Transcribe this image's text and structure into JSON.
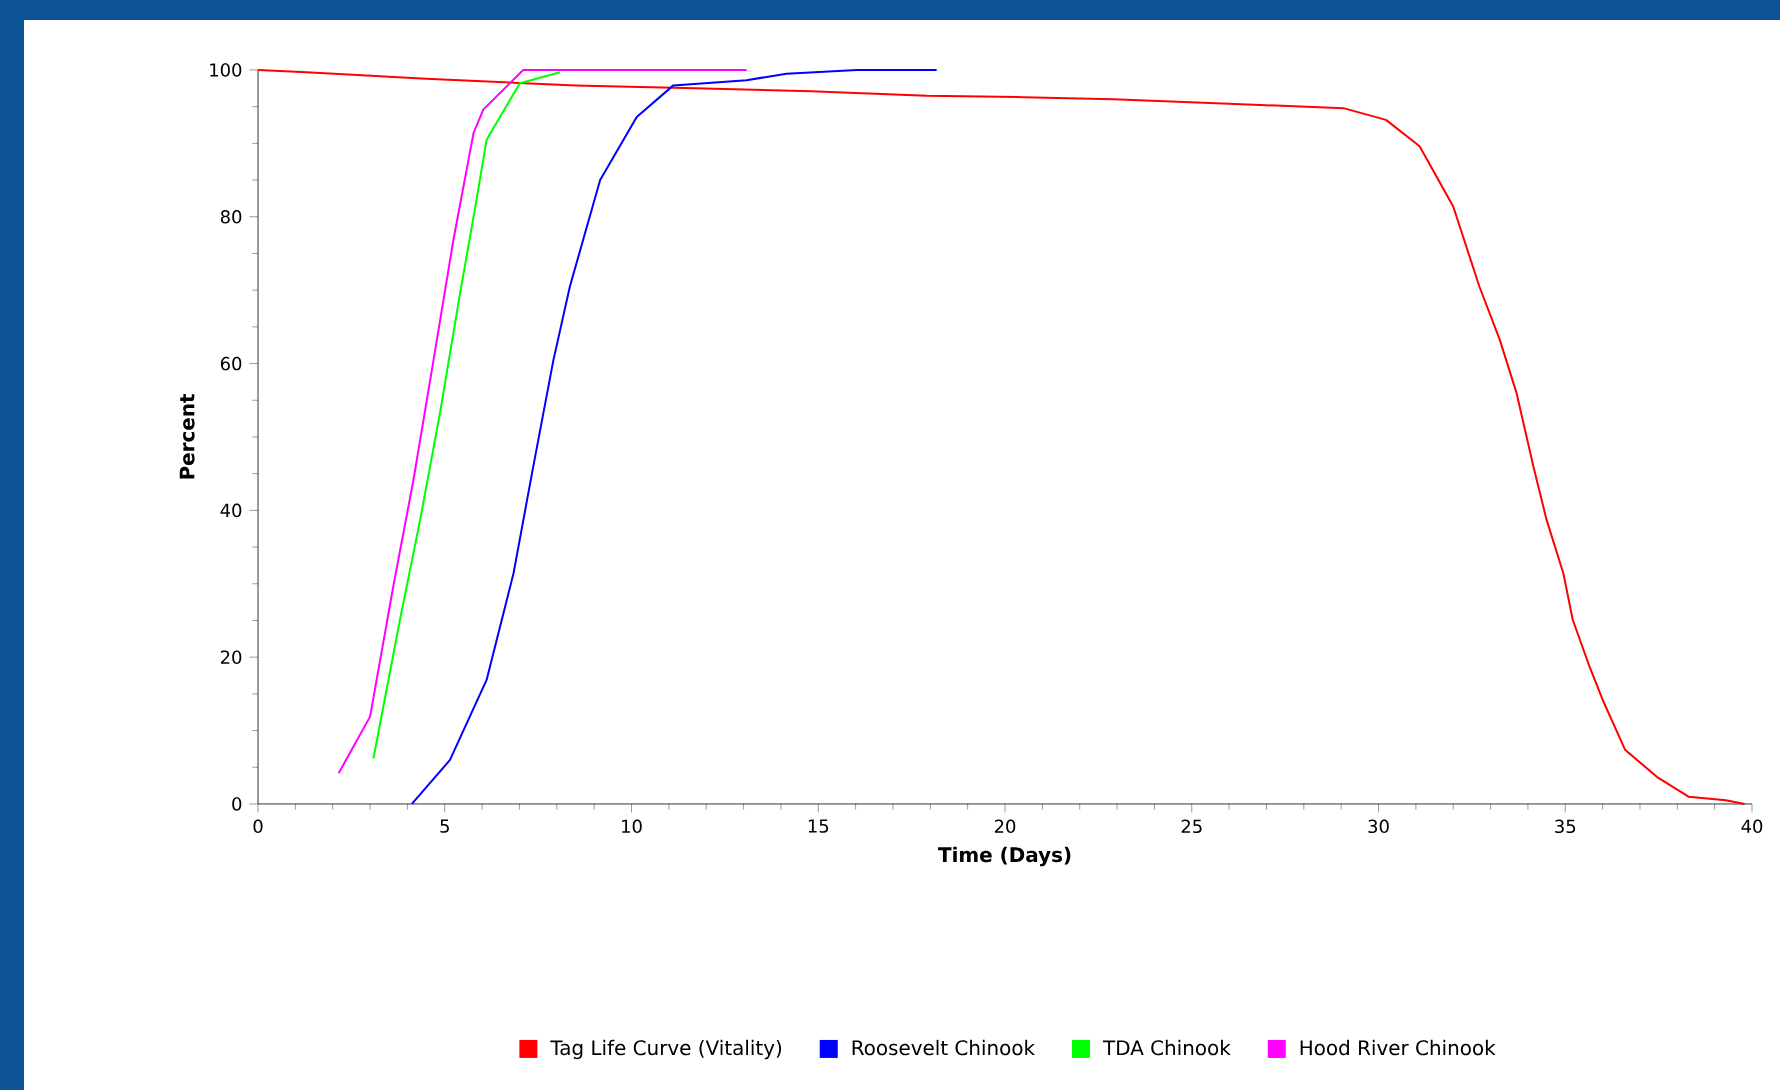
{
  "chart_data": {
    "type": "line",
    "xlabel": "Time (Days)",
    "ylabel": "Percent",
    "xlim": [
      0,
      40
    ],
    "xticks": [
      0,
      5,
      10,
      15,
      20,
      25,
      30,
      35,
      40
    ],
    "ylim": [
      0,
      100
    ],
    "yticks": [
      0,
      20,
      40,
      60,
      80,
      100
    ],
    "grid": false,
    "legend": "bottom",
    "marker": "none",
    "line_style": "solid",
    "series": [
      {
        "name": "Tag Life Curve (Vitality)",
        "color": "#ff0000",
        "x": [
          0,
          1.3,
          4.5,
          8.5,
          11.7,
          14.8,
          17.9,
          20.5,
          22.9,
          26.0,
          29.06,
          30.2,
          31.1,
          32.0,
          32.7,
          33.25,
          33.7,
          34.15,
          34.5,
          34.95,
          35.2,
          35.65,
          36.0,
          36.6,
          37.45,
          38.3,
          39.3,
          39.8
        ],
        "values": [
          100,
          99.7,
          98.8,
          97.9,
          97.5,
          97.1,
          96.5,
          96.3,
          96.0,
          95.4,
          94.8,
          93.2,
          89.6,
          81.4,
          70.5,
          63.2,
          55.9,
          45.9,
          38.7,
          31.4,
          25.1,
          18.7,
          14.2,
          7.4,
          3.7,
          1.0,
          0.5,
          0
        ]
      },
      {
        "name": "Roosevelt Chinook",
        "color": "#0000ff",
        "x": [
          4.12,
          5.14,
          6.12,
          6.84,
          7.37,
          7.91,
          8.35,
          9.16,
          10.14,
          11.12,
          13.08,
          14.15,
          16.03,
          18.17
        ],
        "values": [
          0,
          6.0,
          16.9,
          31.4,
          46.0,
          60.5,
          70.5,
          85.0,
          93.6,
          97.9,
          98.6,
          99.5,
          100,
          100
        ]
      },
      {
        "name": "TDA Chinook",
        "color": "#00ff00",
        "x": [
          3.09,
          3.8,
          4.34,
          4.87,
          5.41,
          5.85,
          6.12,
          7.01,
          8.09
        ],
        "values": [
          6.2,
          25.1,
          38.7,
          53.2,
          69.6,
          82.3,
          90.5,
          98.2,
          99.7
        ]
      },
      {
        "name": "Hood River Chinook",
        "color": "#ff00ff",
        "x": [
          2.16,
          3.0,
          3.62,
          4.16,
          4.7,
          5.23,
          5.77,
          6.03,
          7.1,
          13.08
        ],
        "values": [
          4.2,
          11.9,
          29.6,
          44.1,
          60.5,
          76.8,
          91.4,
          94.6,
          100,
          100
        ]
      }
    ]
  }
}
